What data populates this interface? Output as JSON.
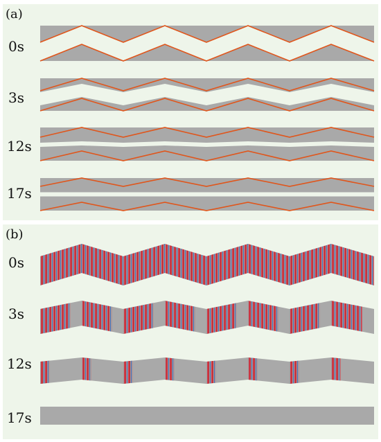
{
  "figure": {
    "sections": [
      {
        "label": "(a)",
        "rows": [
          {
            "time": "0s",
            "state": "initial"
          },
          {
            "time": "3s",
            "state": "gaps-opening"
          },
          {
            "time": "12s",
            "state": "gaps-narrow"
          },
          {
            "time": "17s",
            "state": "near-closed"
          }
        ]
      },
      {
        "label": "(b)",
        "rows": [
          {
            "time": "0s",
            "state": "fully-striped"
          },
          {
            "time": "3s",
            "state": "partially-cleared"
          },
          {
            "time": "12s",
            "state": "mostly-cleared"
          },
          {
            "time": "17s",
            "state": "cleared"
          }
        ]
      }
    ],
    "colors": {
      "panel_bg": "#eef5ea",
      "material": "#a9a9a9",
      "interface_line": "#e0561c",
      "stripe_red": "#c8323c",
      "stripe_blue": "#4a68b4"
    }
  }
}
